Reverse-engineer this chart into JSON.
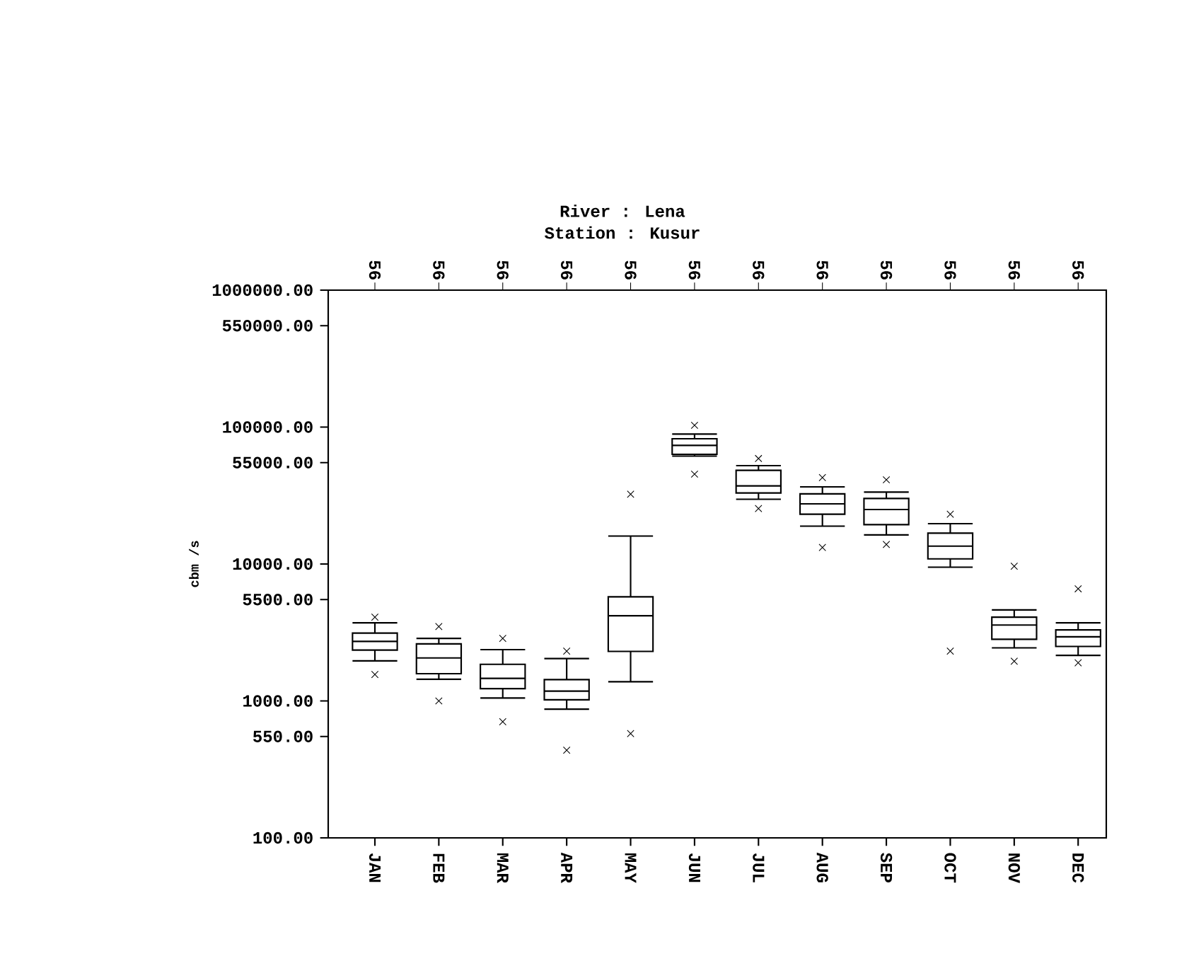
{
  "chart_data": {
    "type": "box",
    "title": "River : Lena",
    "subtitle": "Station : Kusur",
    "ylabel": "cbm /s",
    "categories": [
      "JAN",
      "FEB",
      "MAR",
      "APR",
      "MAY",
      "JUN",
      "JUL",
      "AUG",
      "SEP",
      "OCT",
      "NOV",
      "DEC"
    ],
    "annotations": [
      "56",
      "56",
      "56",
      "56",
      "56",
      "56",
      "56",
      "56",
      "56",
      "56",
      "56",
      "56"
    ],
    "log": "y",
    "ylim": [
      100,
      1000000
    ],
    "yticks": [
      {
        "value": 100,
        "label": "100.00"
      },
      {
        "value": 550,
        "label": "550.00"
      },
      {
        "value": 1000,
        "label": "1000.00"
      },
      {
        "value": 5500,
        "label": "5500.00"
      },
      {
        "value": 10000,
        "label": "10000.00"
      },
      {
        "value": 55000,
        "label": "55000.00"
      },
      {
        "value": 100000,
        "label": "100000.00"
      },
      {
        "value": 550000,
        "label": "550000.00"
      },
      {
        "value": 1000000,
        "label": "1000000.00"
      }
    ],
    "boxes": [
      {
        "low": 1960,
        "q1": 2350,
        "median": 2720,
        "q3": 3130,
        "high": 3720,
        "outliers": [
          4090,
          1560
        ]
      },
      {
        "low": 1440,
        "q1": 1580,
        "median": 2060,
        "q3": 2610,
        "high": 2860,
        "outliers": [
          3490,
          1000
        ]
      },
      {
        "low": 1050,
        "q1": 1230,
        "median": 1460,
        "q3": 1850,
        "high": 2370,
        "outliers": [
          2860,
          705
        ]
      },
      {
        "low": 870,
        "q1": 1020,
        "median": 1180,
        "q3": 1430,
        "high": 2040,
        "outliers": [
          2310,
          437
        ]
      },
      {
        "low": 1380,
        "q1": 2300,
        "median": 4190,
        "q3": 5760,
        "high": 16000,
        "outliers": [
          32300,
          578
        ]
      },
      {
        "low": 61400,
        "q1": 63200,
        "median": 73500,
        "q3": 82200,
        "high": 88900,
        "outliers": [
          103000,
          45300
        ]
      },
      {
        "low": 29700,
        "q1": 33000,
        "median": 37200,
        "q3": 48300,
        "high": 52300,
        "outliers": [
          58900,
          25400
        ]
      },
      {
        "low": 18900,
        "q1": 23100,
        "median": 27500,
        "q3": 32500,
        "high": 36600,
        "outliers": [
          42800,
          13200
        ]
      },
      {
        "low": 16300,
        "q1": 19400,
        "median": 25000,
        "q3": 30100,
        "high": 33500,
        "outliers": [
          41200,
          13900
        ]
      },
      {
        "low": 9480,
        "q1": 10900,
        "median": 13500,
        "q3": 16800,
        "high": 19700,
        "outliers": [
          23100,
          2310
        ]
      },
      {
        "low": 2440,
        "q1": 2820,
        "median": 3580,
        "q3": 4090,
        "high": 4620,
        "outliers": [
          9640,
          1950
        ]
      },
      {
        "low": 2150,
        "q1": 2500,
        "median": 2940,
        "q3": 3300,
        "high": 3720,
        "outliers": [
          6590,
          1900
        ]
      }
    ]
  }
}
